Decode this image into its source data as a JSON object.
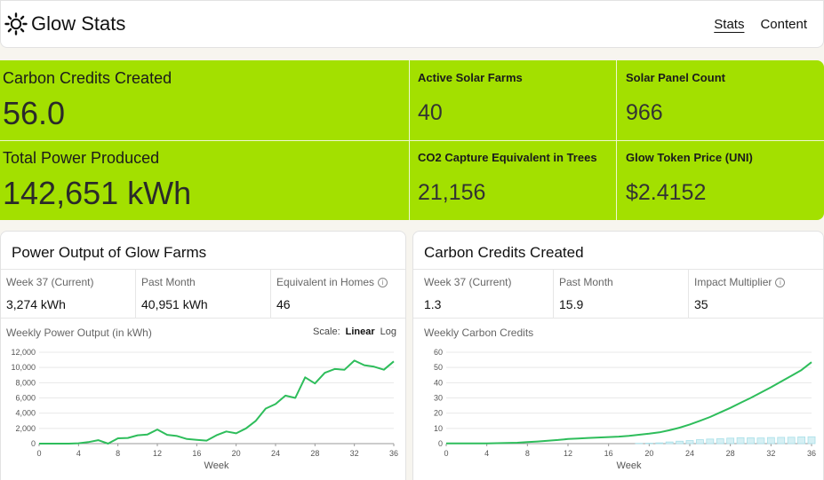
{
  "header": {
    "brand": "Glow Stats",
    "nav": [
      {
        "label": "Stats",
        "active": true
      },
      {
        "label": "Content",
        "active": false
      }
    ]
  },
  "stats": {
    "carbon_credits": {
      "label": "Carbon Credits Created",
      "value": "56.0"
    },
    "total_power": {
      "label": "Total Power Produced",
      "value": "142,651 kWh"
    },
    "solar_farms": {
      "label": "Active Solar Farms",
      "value": "40"
    },
    "panel_count": {
      "label": "Solar Panel Count",
      "value": "966"
    },
    "co2_trees": {
      "label": "CO2 Capture Equivalent in Trees",
      "value": "21,156"
    },
    "token_price": {
      "label": "Glow Token Price (UNI)",
      "value": "$2.4152"
    }
  },
  "power_card": {
    "title": "Power Output of Glow Farms",
    "metrics": [
      {
        "label": "Week 37 (Current)",
        "value": "3,274 kWh"
      },
      {
        "label": "Past Month",
        "value": "40,951 kWh"
      },
      {
        "label": "Equivalent in Homes",
        "value": "46"
      }
    ],
    "chart_title": "Weekly Power Output (in kWh)",
    "scale_label": "Scale:",
    "scale_options": [
      "Linear",
      "Log"
    ]
  },
  "carbon_card": {
    "title": "Carbon Credits Created",
    "metrics": [
      {
        "label": "Week 37 (Current)",
        "value": "1.3"
      },
      {
        "label": "Past Month",
        "value": "15.9"
      },
      {
        "label": "Impact Multiplier",
        "value": "35"
      }
    ],
    "chart_title": "Weekly Carbon Credits"
  },
  "colors": {
    "accent_green": "#a3e000",
    "line_green": "#2ebd5b",
    "bar_teal": "#a8dfe8"
  },
  "chart_data": [
    {
      "type": "line",
      "xlabel": "Week",
      "ylabel": "",
      "x": [
        0,
        1,
        2,
        3,
        4,
        5,
        6,
        7,
        8,
        9,
        10,
        11,
        12,
        13,
        14,
        15,
        16,
        17,
        18,
        19,
        20,
        21,
        22,
        23,
        24,
        25,
        26,
        27,
        28,
        29,
        30,
        31,
        32,
        33,
        34,
        35,
        36
      ],
      "xticks": [
        0,
        4,
        8,
        12,
        16,
        20,
        24,
        28,
        32,
        36
      ],
      "yticks": [
        0,
        2000,
        4000,
        6000,
        8000,
        10000,
        12000
      ],
      "ytick_labels": [
        "0",
        "2,000",
        "4,000",
        "6,000",
        "8,000",
        "10,000",
        "12,000"
      ],
      "ylim": [
        0,
        12000
      ],
      "xlim": [
        0,
        36
      ],
      "grid": "horizontal",
      "series": [
        {
          "values": [
            0,
            0,
            0,
            0,
            50,
            200,
            450,
            0,
            700,
            750,
            1100,
            1200,
            1850,
            1150,
            1000,
            600,
            500,
            400,
            1100,
            1600,
            1350,
            2000,
            3000,
            4600,
            5200,
            6300,
            6000,
            8700,
            7900,
            9300,
            9800,
            9700,
            10900,
            10300,
            10100,
            9700,
            10800
          ]
        }
      ]
    },
    {
      "type": "line",
      "xlabel": "Week",
      "ylabel": "",
      "x": [
        0,
        1,
        2,
        3,
        4,
        5,
        6,
        7,
        8,
        9,
        10,
        11,
        12,
        13,
        14,
        15,
        16,
        17,
        18,
        19,
        20,
        21,
        22,
        23,
        24,
        25,
        26,
        27,
        28,
        29,
        30,
        31,
        32,
        33,
        34,
        35,
        36
      ],
      "xticks": [
        0,
        4,
        8,
        12,
        16,
        20,
        24,
        28,
        32,
        36
      ],
      "yticks": [
        0,
        10,
        20,
        30,
        40,
        50,
        60
      ],
      "ytick_labels": [
        "0",
        "10",
        "20",
        "30",
        "40",
        "50",
        "60"
      ],
      "ylim": [
        0,
        60
      ],
      "xlim": [
        0,
        36
      ],
      "grid": "horizontal",
      "series": [
        {
          "values": [
            0.1,
            0.1,
            0.1,
            0.1,
            0.2,
            0.3,
            0.4,
            0.6,
            1.0,
            1.4,
            1.9,
            2.4,
            3.0,
            3.4,
            3.7,
            4.0,
            4.3,
            4.6,
            5.1,
            5.8,
            6.5,
            7.4,
            8.8,
            10.5,
            12.6,
            15.0,
            17.5,
            20.5,
            23.5,
            26.8,
            30.0,
            33.5,
            37.0,
            40.8,
            44.5,
            48.3,
            53.5
          ]
        },
        {
          "values": [
            0,
            0,
            0,
            0,
            0,
            0,
            0,
            0,
            0,
            0,
            0,
            0,
            0,
            0,
            0,
            0,
            0,
            0,
            0,
            0.2,
            0.3,
            0.5,
            1.1,
            1.6,
            2.0,
            2.6,
            3.0,
            3.2,
            3.6,
            3.9,
            3.8,
            3.7,
            4.0,
            4.1,
            4.2,
            4.4,
            4.5
          ]
        }
      ]
    }
  ]
}
